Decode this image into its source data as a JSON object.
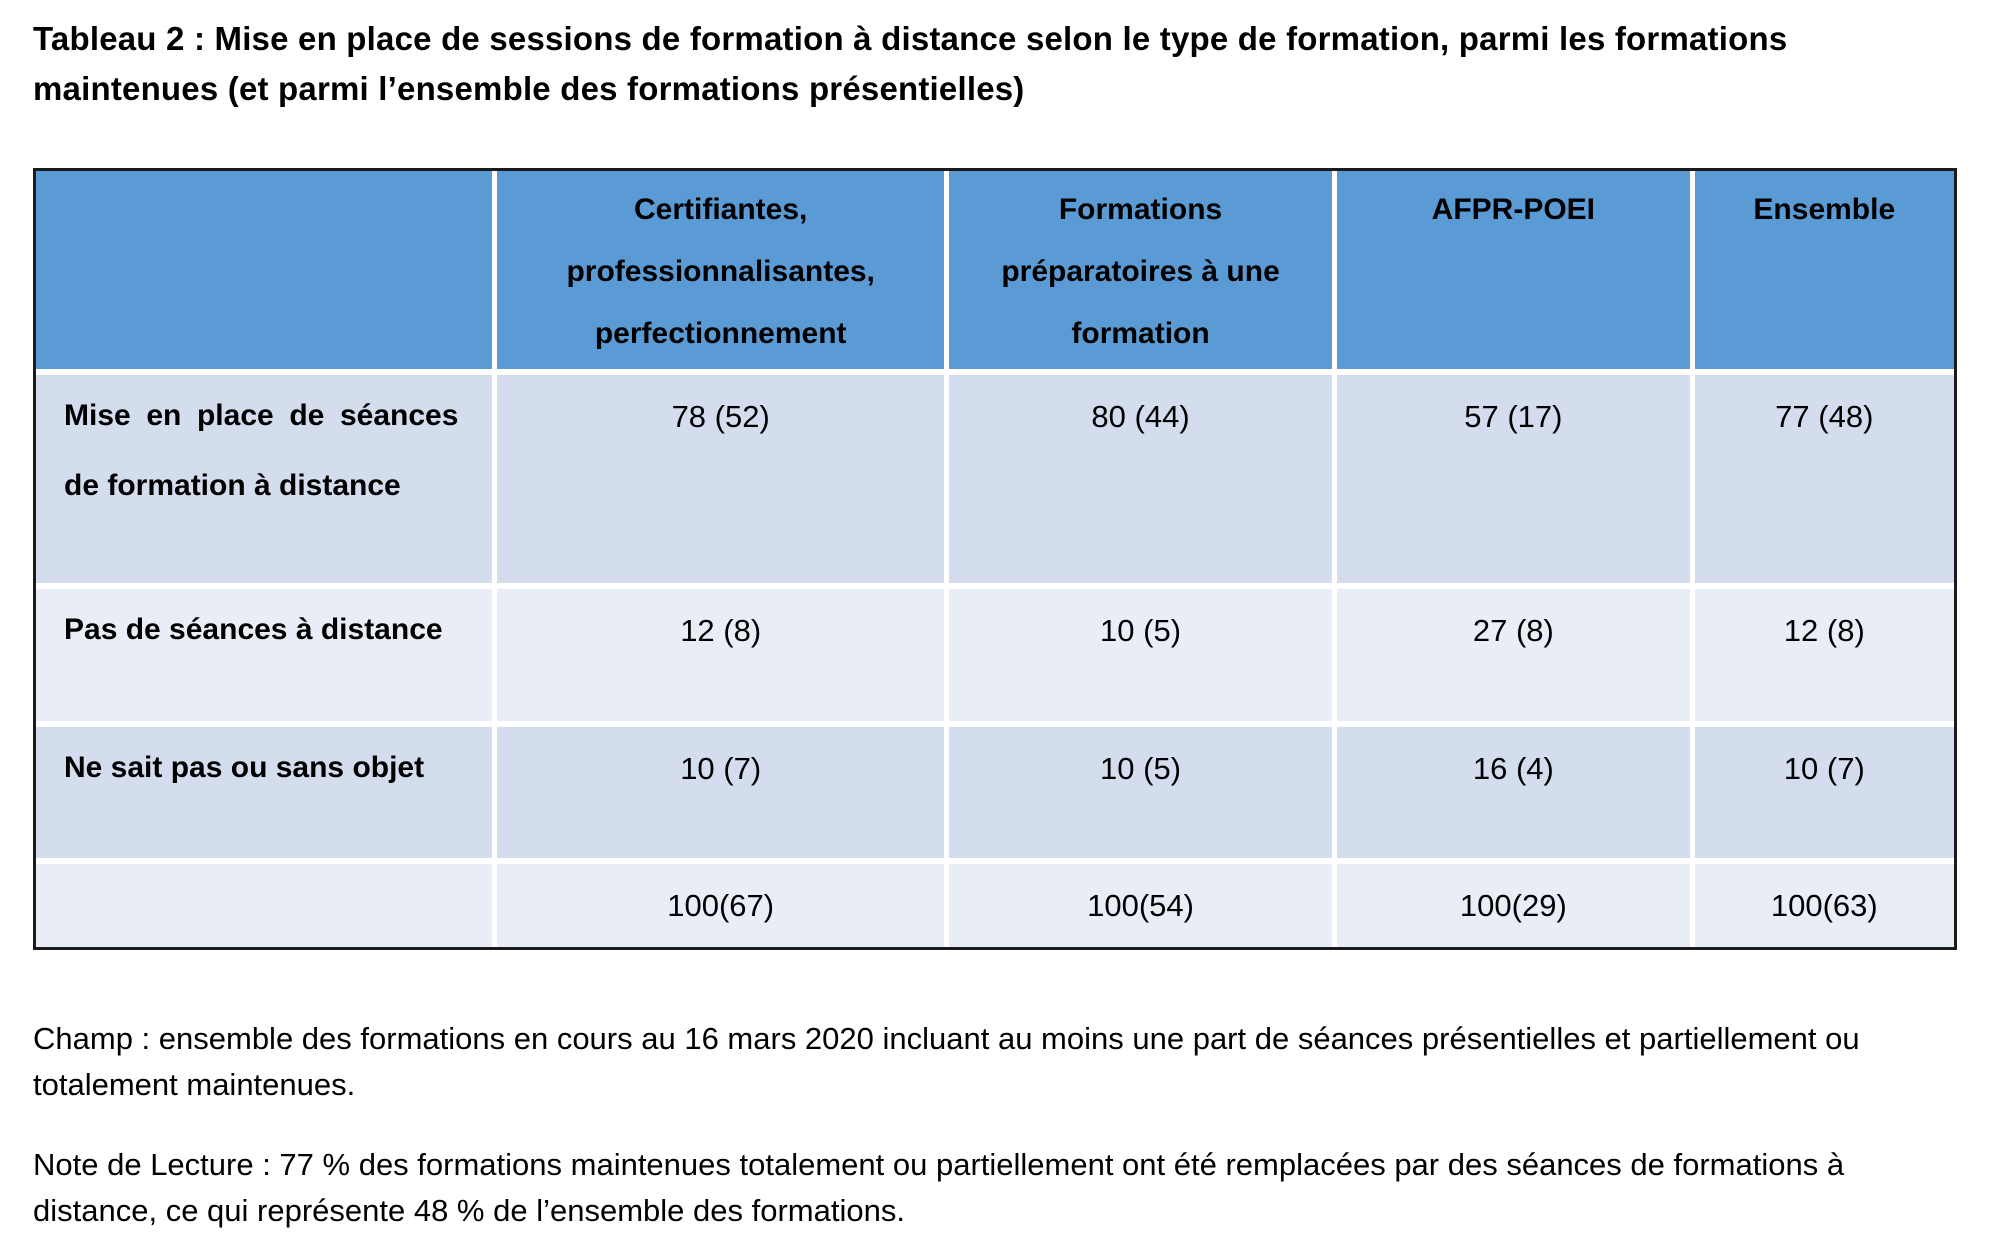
{
  "title": "Tableau 2 : Mise en place de sessions de formation à distance selon le type de formation, parmi les formations maintenues (et parmi l’ensemble des formations présentielles)",
  "table": {
    "columns": [
      "",
      "Certifiantes, professionnalisantes, perfectionnement",
      "Formations préparatoires à une formation",
      "AFPR-POEI",
      "Ensemble"
    ],
    "rows": [
      {
        "label": "Mise en place de séances de formation à distance",
        "values": [
          "78 (52)",
          "80 (44)",
          "57 (17)",
          "77 (48)"
        ]
      },
      {
        "label": "Pas de séances à distance",
        "values": [
          "12 (8)",
          "10 (5)",
          "27 (8)",
          "12 (8)"
        ]
      },
      {
        "label": "Ne sait pas ou sans objet",
        "values": [
          "10 (7)",
          "10 (5)",
          "16 (4)",
          "10 (7)"
        ]
      },
      {
        "label": "",
        "values": [
          "100(67)",
          "100(54)",
          "100(29)",
          "100(63)"
        ]
      }
    ]
  },
  "notes": {
    "champ": "Champ : ensemble des formations en cours au 16 mars 2020 incluant au moins une part de séances présentielles et partiellement ou totalement maintenues.",
    "lecture": "Note de Lecture : 77 % des formations maintenues totalement ou partiellement ont été remplacées par des séances de formations à distance, ce qui représente 48 % de l’ensemble des formations."
  },
  "colors": {
    "header_blue": "#5b9bd5",
    "band_dark": "#d3ddee",
    "band_light": "#e9edf6",
    "gridline": "#ffffff",
    "outer_border": "#1b1b1b",
    "text": "#000000"
  }
}
